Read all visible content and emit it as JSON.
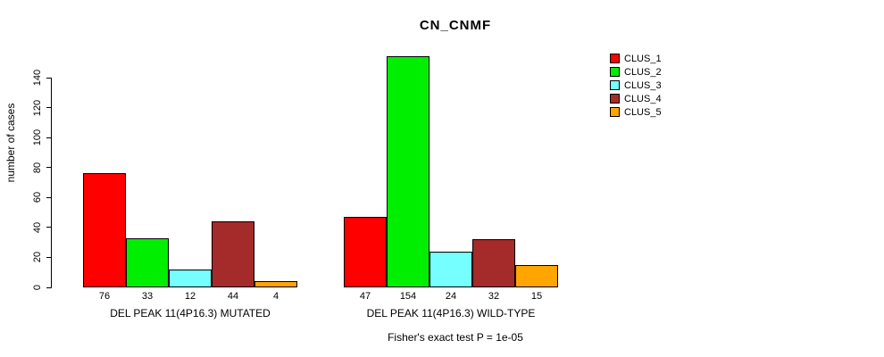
{
  "title": "CN_CNMF",
  "footer": "Fisher's exact test P = 1e-05",
  "chart_data": {
    "type": "bar",
    "title": "CN_CNMF",
    "xlabel": "",
    "ylabel": "number of cases",
    "ylim": [
      0,
      155
    ],
    "yticks": [
      0,
      20,
      40,
      60,
      80,
      100,
      120,
      140
    ],
    "grid": false,
    "legend_position": "right",
    "series_colors": [
      "#FF0000",
      "#00EE00",
      "#76FFFF",
      "#A52A2A",
      "#FFA500"
    ],
    "groups": [
      {
        "label": "DEL PEAK 11(4P16.3) MUTATED",
        "values": [
          76,
          33,
          12,
          44,
          4
        ]
      },
      {
        "label": "DEL PEAK 11(4P16.3) WILD-TYPE",
        "values": [
          47,
          154,
          24,
          32,
          15
        ]
      }
    ],
    "legend": [
      {
        "label": "CLUS_1",
        "color": "#FF0000"
      },
      {
        "label": "CLUS_2",
        "color": "#00EE00"
      },
      {
        "label": "CLUS_3",
        "color": "#76FFFF"
      },
      {
        "label": "CLUS_4",
        "color": "#A52A2A"
      },
      {
        "label": "CLUS_5",
        "color": "#FFA500"
      }
    ],
    "annotation": "Fisher's exact test P = 1e-05"
  }
}
